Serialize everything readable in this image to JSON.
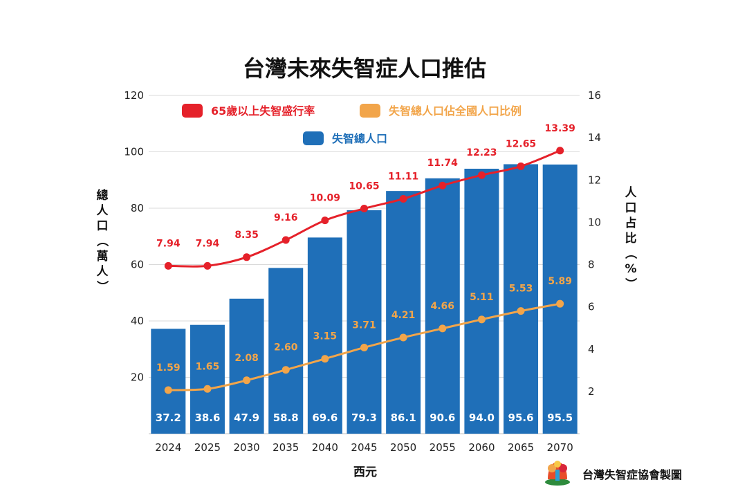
{
  "chart_data": {
    "type": "bar",
    "title": "台灣未來失智症人口推估",
    "xlabel": "西元",
    "ylabel": "總人口（萬人）",
    "y2label": "人口占比（%）",
    "ylim": [
      0,
      120
    ],
    "y2lim": [
      0,
      16
    ],
    "yticks": [
      20,
      40,
      60,
      80,
      100,
      120
    ],
    "y2ticks": [
      2,
      4,
      6,
      8,
      10,
      12,
      14,
      16
    ],
    "grid": true,
    "legend_position": "top",
    "categories": [
      "2024",
      "2025",
      "2030",
      "2035",
      "2040",
      "2045",
      "2050",
      "2055",
      "2060",
      "2065",
      "2070"
    ],
    "series": [
      {
        "name": "失智總人口",
        "type": "bar",
        "axis": "left",
        "color": "#1f6fb8",
        "values": [
          37.2,
          38.6,
          47.9,
          58.8,
          69.6,
          79.3,
          86.1,
          90.6,
          94.0,
          95.6,
          95.5
        ],
        "labels": [
          "37.2",
          "38.6",
          "47.9",
          "58.8",
          "69.6",
          "79.3",
          "86.1",
          "90.6",
          "94.0",
          "95.6",
          "95.5"
        ]
      },
      {
        "name": "65歲以上失智盛行率",
        "type": "line",
        "axis": "right",
        "color": "#e5212a",
        "values": [
          7.94,
          7.94,
          8.35,
          9.16,
          10.09,
          10.65,
          11.11,
          11.74,
          12.23,
          12.65,
          13.39
        ],
        "labels": [
          "7.94",
          "7.94",
          "8.35",
          "9.16",
          "10.09",
          "10.65",
          "11.11",
          "11.74",
          "12.23",
          "12.65",
          "13.39"
        ]
      },
      {
        "name": "失智總人口佔全國人口比例",
        "type": "line",
        "axis": "right",
        "color": "#f2a54a",
        "values": [
          1.59,
          1.65,
          2.08,
          2.6,
          3.15,
          3.71,
          4.21,
          4.66,
          5.11,
          5.53,
          5.89
        ],
        "labels": [
          "1.59",
          "1.65",
          "2.08",
          "2.60",
          "3.15",
          "3.71",
          "4.21",
          "4.66",
          "5.11",
          "5.53",
          "5.89"
        ]
      }
    ]
  },
  "credit": "台灣失智症協會製圖",
  "colors": {
    "bar": "#1f6fb8",
    "prevalence": "#e5212a",
    "share": "#f2a54a",
    "grid": "#d9d9d9"
  }
}
